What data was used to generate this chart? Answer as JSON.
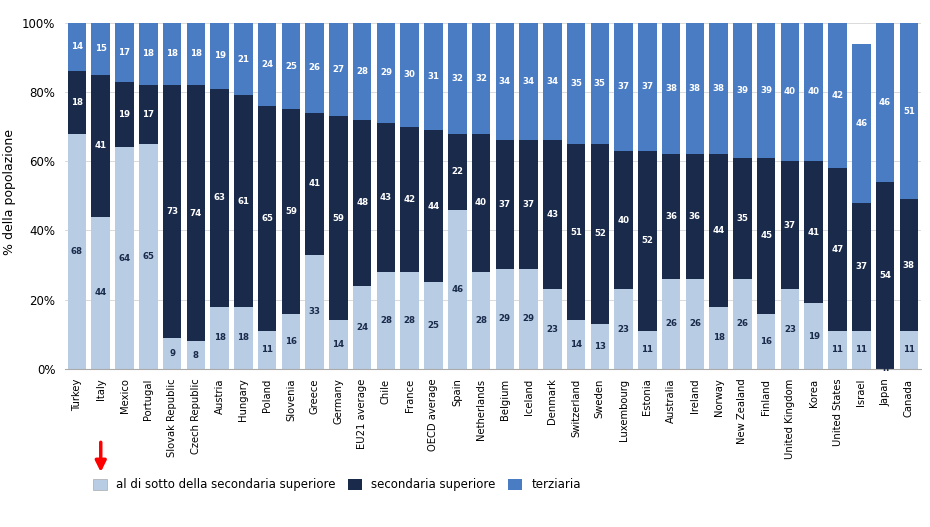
{
  "countries": [
    "Turkey",
    "Italy",
    "Mexico",
    "Portugal",
    "Slovak Republic",
    "Czech Republic",
    "Austria",
    "Hungary",
    "Poland",
    "Slovenia",
    "Greece",
    "Germany",
    "EU21 average",
    "Chile",
    "France",
    "OECD average",
    "Spain",
    "Netherlands",
    "Belgium",
    "Iceland",
    "Denmark",
    "Switzerland",
    "Sweden",
    "Luxembourg",
    "Estonia",
    "Australia",
    "Ireland",
    "Norway",
    "New Zealand",
    "Finland",
    "United Kingdom",
    "Korea",
    "United States",
    "Israel",
    "Japan",
    "Canada"
  ],
  "below_upper_secondary": [
    68,
    44,
    64,
    65,
    9,
    8,
    18,
    18,
    11,
    16,
    33,
    14,
    24,
    28,
    28,
    25,
    46,
    28,
    29,
    29,
    23,
    14,
    13,
    23,
    11,
    26,
    26,
    18,
    26,
    16,
    23,
    19,
    11,
    11,
    0,
    11
  ],
  "upper_secondary": [
    18,
    41,
    19,
    17,
    73,
    74,
    63,
    61,
    65,
    59,
    41,
    59,
    48,
    43,
    42,
    44,
    22,
    40,
    37,
    37,
    43,
    51,
    52,
    40,
    52,
    36,
    36,
    44,
    35,
    45,
    37,
    41,
    47,
    37,
    54,
    38
  ],
  "tertiary": [
    14,
    15,
    17,
    18,
    18,
    18,
    19,
    21,
    24,
    25,
    26,
    27,
    28,
    29,
    30,
    31,
    32,
    32,
    34,
    34,
    34,
    35,
    35,
    37,
    37,
    38,
    38,
    38,
    39,
    39,
    40,
    40,
    42,
    46,
    46,
    51
  ],
  "color_below": "#b8cce4",
  "color_upper": "#1a2a4a",
  "color_tertiary": "#4a7cc4",
  "ylabel": "% della popolazione",
  "legend_labels": [
    "al di sotto della secondaria superiore",
    "secondaria superiore",
    "terziaria"
  ],
  "japan_below_label": "n"
}
